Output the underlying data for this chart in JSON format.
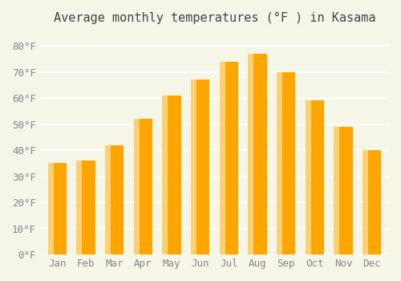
{
  "title": "Average monthly temperatures (°F ) in Kasama",
  "months": [
    "Jan",
    "Feb",
    "Mar",
    "Apr",
    "May",
    "Jun",
    "Jul",
    "Aug",
    "Sep",
    "Oct",
    "Nov",
    "Dec"
  ],
  "values": [
    35,
    36,
    42,
    52,
    61,
    67,
    74,
    77,
    70,
    59,
    49,
    40
  ],
  "bar_color": "#FFA500",
  "bar_color_light": "#FFD070",
  "ylim": [
    0,
    85
  ],
  "yticks": [
    0,
    10,
    20,
    30,
    40,
    50,
    60,
    70,
    80
  ],
  "ytick_labels": [
    "0°F",
    "10°F",
    "20°F",
    "30°F",
    "40°F",
    "50°F",
    "60°F",
    "70°F",
    "80°F"
  ],
  "background_color": "#f5f5e8",
  "grid_color": "#ffffff",
  "title_fontsize": 11,
  "tick_fontsize": 9
}
